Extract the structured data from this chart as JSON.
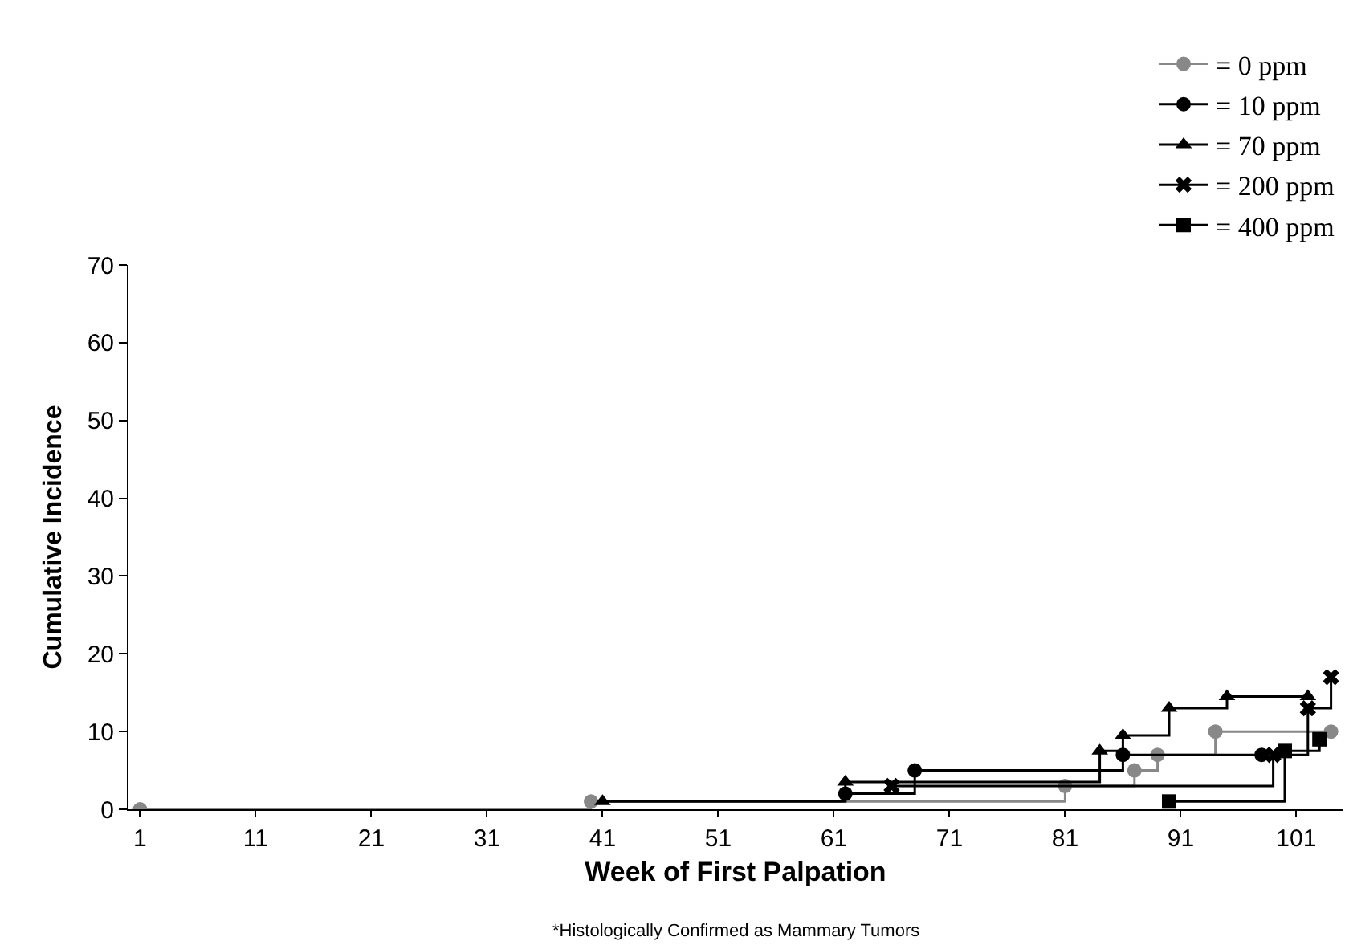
{
  "chart_data": {
    "type": "step",
    "xlabel": "Week of First Palpation",
    "ylabel": "Cumulative Incidence",
    "annotations": [
      "*Histologically Confirmed as Mammary Tumors"
    ],
    "xlim": [
      0,
      105
    ],
    "xticks": [
      1,
      11,
      21,
      31,
      41,
      51,
      61,
      71,
      81,
      91,
      101
    ],
    "ylim": [
      0,
      70
    ],
    "yticks": [
      0,
      10,
      20,
      30,
      40,
      50,
      60,
      70
    ],
    "grid": false,
    "legend": "top right",
    "series": [
      {
        "name": "= 0 ppm",
        "color": "#888888",
        "marker": "circle",
        "x": [
          1,
          40,
          81,
          87,
          89,
          94,
          104
        ],
        "values": [
          0,
          1,
          3,
          5,
          7,
          10,
          10
        ]
      },
      {
        "name": "= 10 ppm",
        "color": "#000000",
        "marker": "circle",
        "x": [
          62,
          68,
          86,
          98
        ],
        "values": [
          2,
          5,
          7,
          7
        ]
      },
      {
        "name": "= 70 ppm",
        "color": "#000000",
        "marker": "triangle",
        "x": [
          41,
          62,
          84,
          86,
          90,
          95,
          102
        ],
        "values": [
          1,
          3.5,
          7.5,
          9.5,
          13,
          14.5,
          14.5
        ]
      },
      {
        "name": "= 200 ppm",
        "color": "#000000",
        "marker": "cross",
        "x": [
          66,
          99,
          102,
          104
        ],
        "values": [
          3,
          7,
          13,
          17
        ]
      },
      {
        "name": "= 400 ppm",
        "color": "#000000",
        "marker": "square",
        "x": [
          90,
          100,
          103
        ],
        "values": [
          1,
          7.5,
          9
        ]
      }
    ]
  }
}
